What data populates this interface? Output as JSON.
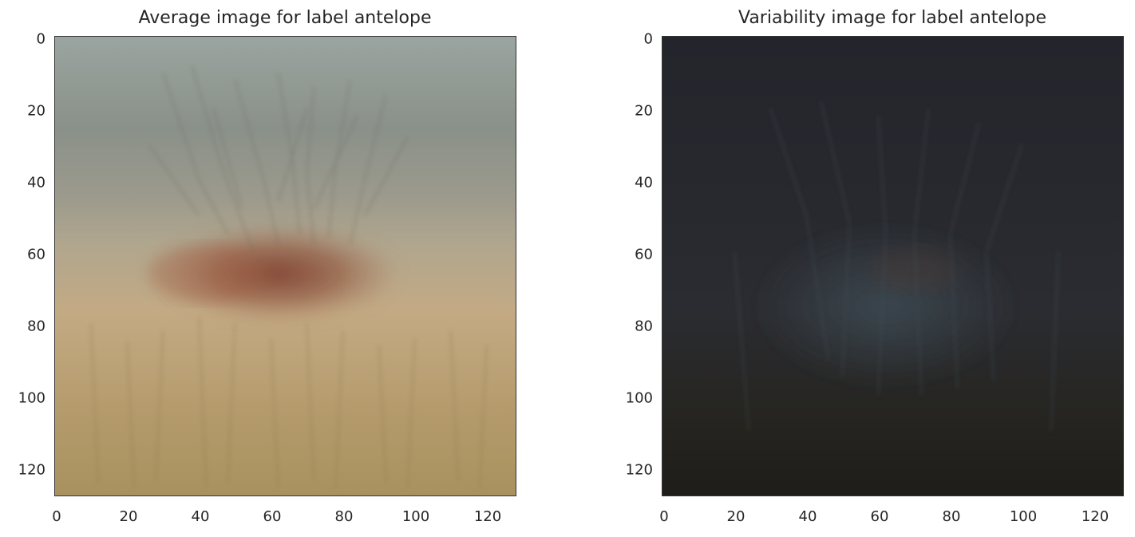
{
  "chart_data": [
    {
      "type": "heatmap",
      "title": "Average image for label antelope",
      "xlabel": "",
      "ylabel": "",
      "xlim": [
        0,
        128
      ],
      "ylim": [
        128,
        0
      ],
      "x_ticks": [
        "0",
        "20",
        "40",
        "60",
        "80",
        "100",
        "120"
      ],
      "y_ticks": [
        "0",
        "20",
        "40",
        "60",
        "80",
        "100",
        "120"
      ],
      "grid": false,
      "colors": {
        "sky_top": "#9aa5a1",
        "sky_mid": "#8a918a",
        "haze": "#9c9a8c",
        "grass_light": "#c3aa84",
        "grass_dark": "#a9915f",
        "animal_body": "#8a4a35"
      }
    },
    {
      "type": "heatmap",
      "title": "Variability image for label antelope",
      "xlabel": "",
      "ylabel": "",
      "xlim": [
        0,
        128
      ],
      "ylim": [
        128,
        0
      ],
      "x_ticks": [
        "0",
        "20",
        "40",
        "60",
        "80",
        "100",
        "120"
      ],
      "y_ticks": [
        "0",
        "20",
        "40",
        "60",
        "80",
        "100",
        "120"
      ],
      "grid": false,
      "colors": {
        "background_top": "#24252c",
        "background_mid": "#2b2c31",
        "background_bottom": "#1e1d19",
        "highlight": "#3f4e57",
        "warm_highlight": "#4a3a34"
      }
    }
  ]
}
